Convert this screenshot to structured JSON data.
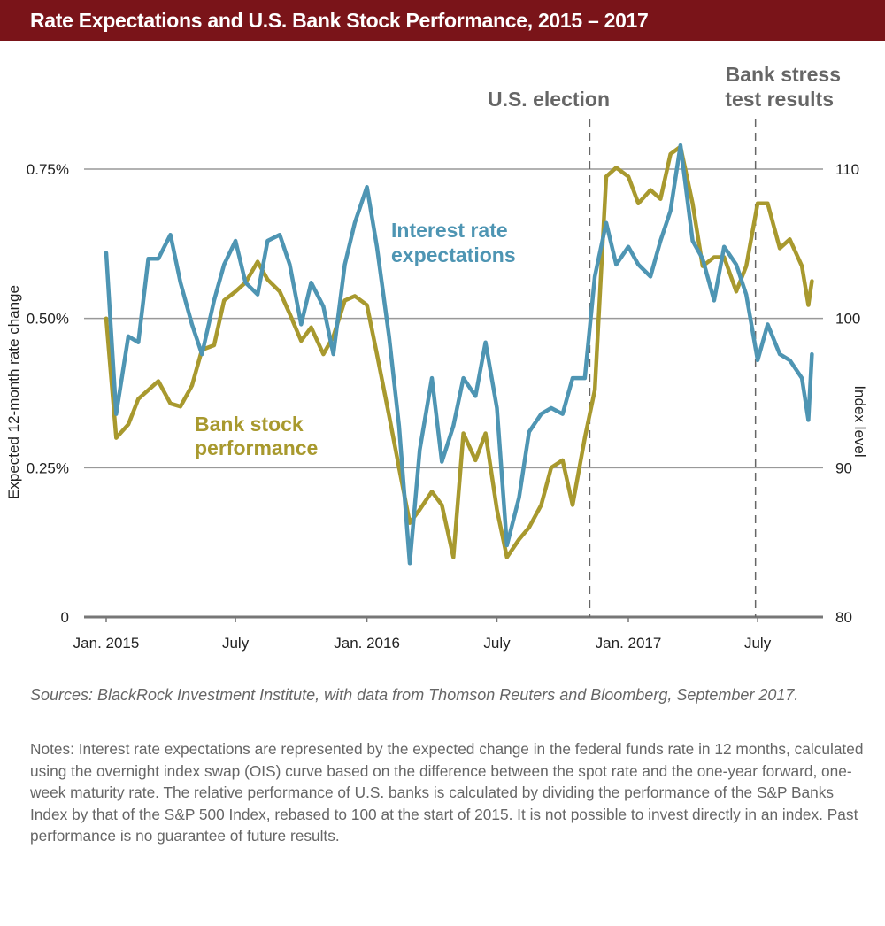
{
  "header": {
    "title": "Rate Expectations and U.S. Bank Stock Performance, 2015 – 2017"
  },
  "colors": {
    "title_bar": "#7a1419",
    "rate_series": "#4e95b3",
    "bank_series": "#a8992e"
  },
  "chart_data": {
    "type": "line",
    "title": "Rate Expectations and U.S. Bank Stock Performance, 2015 – 2017",
    "ylabel": "Expected 12-month rate change",
    "y2label": "Index level",
    "ylim": [
      0,
      0.75
    ],
    "y2lim": [
      80,
      110
    ],
    "yticks": [
      "0",
      "0.25%",
      "0.50%",
      "0.75%"
    ],
    "y2ticks": [
      "80",
      "90",
      "100",
      "110"
    ],
    "xticks": [
      "Jan. 2015",
      "July",
      "Jan. 2016",
      "July",
      "Jan. 2017",
      "July"
    ],
    "grid": "horizontal",
    "annotations": [
      {
        "label": "U.S. election",
        "date": "2016-11-08"
      },
      {
        "label": "Bank stress test results",
        "date": "2017-06-28"
      }
    ],
    "series": [
      {
        "name": "Interest rate expectations",
        "axis": "left",
        "unit": "%",
        "x": [
          "2015-01-01",
          "2015-01-15",
          "2015-02-01",
          "2015-02-15",
          "2015-03-01",
          "2015-03-15",
          "2015-04-01",
          "2015-04-15",
          "2015-05-01",
          "2015-05-15",
          "2015-06-01",
          "2015-06-15",
          "2015-07-01",
          "2015-07-15",
          "2015-08-01",
          "2015-08-15",
          "2015-09-01",
          "2015-09-15",
          "2015-10-01",
          "2015-10-15",
          "2015-11-01",
          "2015-11-15",
          "2015-12-01",
          "2015-12-15",
          "2016-01-01",
          "2016-01-15",
          "2016-02-01",
          "2016-02-15",
          "2016-03-01",
          "2016-03-15",
          "2016-04-01",
          "2016-04-15",
          "2016-05-01",
          "2016-05-15",
          "2016-06-01",
          "2016-06-15",
          "2016-07-01",
          "2016-07-15",
          "2016-08-01",
          "2016-08-15",
          "2016-09-01",
          "2016-09-15",
          "2016-10-01",
          "2016-10-15",
          "2016-11-01",
          "2016-11-15",
          "2016-12-01",
          "2016-12-15",
          "2017-01-01",
          "2017-01-15",
          "2017-02-01",
          "2017-02-15",
          "2017-03-01",
          "2017-03-15",
          "2017-04-01",
          "2017-04-15",
          "2017-05-01",
          "2017-05-15",
          "2017-06-01",
          "2017-06-15",
          "2017-07-01",
          "2017-07-15",
          "2017-08-01",
          "2017-08-15",
          "2017-09-01",
          "2017-09-10",
          "2017-09-15"
        ],
        "values": [
          0.61,
          0.34,
          0.47,
          0.46,
          0.6,
          0.6,
          0.64,
          0.56,
          0.49,
          0.44,
          0.53,
          0.59,
          0.63,
          0.56,
          0.54,
          0.63,
          0.64,
          0.59,
          0.49,
          0.56,
          0.52,
          0.44,
          0.59,
          0.66,
          0.72,
          0.62,
          0.47,
          0.32,
          0.09,
          0.28,
          0.4,
          0.26,
          0.32,
          0.4,
          0.37,
          0.46,
          0.35,
          0.12,
          0.2,
          0.31,
          0.34,
          0.35,
          0.34,
          0.4,
          0.4,
          0.57,
          0.66,
          0.59,
          0.62,
          0.59,
          0.57,
          0.63,
          0.68,
          0.79,
          0.63,
          0.6,
          0.53,
          0.62,
          0.59,
          0.54,
          0.43,
          0.49,
          0.44,
          0.43,
          0.4,
          0.33,
          0.44
        ]
      },
      {
        "name": "Bank stock performance",
        "axis": "right",
        "unit": "index",
        "x": [
          "2015-01-01",
          "2015-01-15",
          "2015-02-01",
          "2015-02-15",
          "2015-03-01",
          "2015-03-15",
          "2015-04-01",
          "2015-04-15",
          "2015-05-01",
          "2015-05-15",
          "2015-06-01",
          "2015-06-15",
          "2015-07-01",
          "2015-07-15",
          "2015-08-01",
          "2015-08-15",
          "2015-09-01",
          "2015-09-15",
          "2015-10-01",
          "2015-10-15",
          "2015-11-01",
          "2015-11-15",
          "2015-12-01",
          "2015-12-15",
          "2016-01-01",
          "2016-01-15",
          "2016-02-01",
          "2016-02-15",
          "2016-03-01",
          "2016-03-15",
          "2016-04-01",
          "2016-04-15",
          "2016-05-01",
          "2016-05-15",
          "2016-06-01",
          "2016-06-15",
          "2016-07-01",
          "2016-07-15",
          "2016-08-01",
          "2016-08-15",
          "2016-09-01",
          "2016-09-15",
          "2016-10-01",
          "2016-10-15",
          "2016-11-01",
          "2016-11-15",
          "2016-12-01",
          "2016-12-15",
          "2017-01-01",
          "2017-01-15",
          "2017-02-01",
          "2017-02-15",
          "2017-03-01",
          "2017-03-15",
          "2017-04-01",
          "2017-04-15",
          "2017-05-01",
          "2017-05-15",
          "2017-06-01",
          "2017-06-15",
          "2017-07-01",
          "2017-07-15",
          "2017-08-01",
          "2017-08-15",
          "2017-09-01",
          "2017-09-10",
          "2017-09-15"
        ],
        "values": [
          100,
          92,
          92.9,
          94.6,
          95.2,
          95.8,
          94.3,
          94.1,
          95.5,
          97.9,
          98.2,
          101.2,
          101.8,
          102.4,
          103.8,
          102.6,
          101.8,
          100.3,
          98.5,
          99.4,
          97.6,
          98.8,
          101.2,
          101.5,
          100.9,
          97.6,
          93.5,
          90,
          86.3,
          87.2,
          88.4,
          87.5,
          84,
          92.3,
          90.5,
          92.3,
          87.2,
          84,
          85.2,
          86,
          87.5,
          90,
          90.5,
          87.5,
          92,
          95.2,
          109.5,
          110.1,
          109.5,
          107.7,
          108.6,
          108,
          111,
          111.5,
          107.7,
          103.5,
          104.1,
          104.1,
          101.8,
          103.5,
          107.7,
          107.7,
          104.7,
          105.3,
          103.5,
          100.9,
          102.5
        ]
      }
    ]
  },
  "labels": {
    "rate_line1": "Interest rate",
    "rate_line2": "expectations",
    "bank_line1": "Bank stock",
    "bank_line2": "performance",
    "election": "U.S. election",
    "stress1": "Bank stress",
    "stress2": "test results"
  },
  "footer": {
    "sources": "Sources: BlackRock Investment Institute, with data from Thomson Reuters and Bloomberg, September 2017.",
    "notes": "Notes: Interest rate expectations are represented by the expected change in the federal funds rate in 12 months, calculated using the overnight index swap (OIS) curve based on the difference between the spot rate and the one-year forward, one-week maturity rate. The relative performance of U.S. banks is calculated by dividing the performance of the S&P Banks Index by that of the S&P 500 Index, rebased to 100 at the start of 2015. It is not possible to invest directly in an index. Past performance is no guarantee of future results."
  }
}
